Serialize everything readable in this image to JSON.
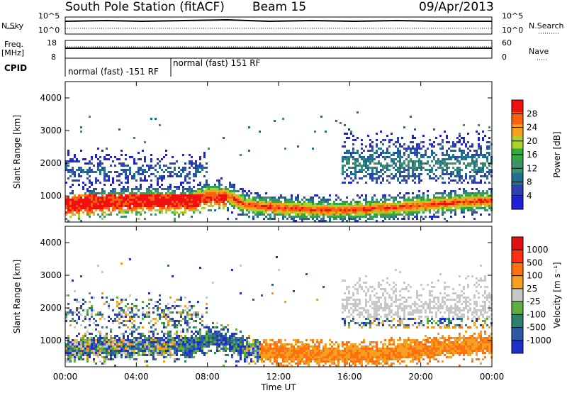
{
  "header": {
    "station": "South Pole Station (fitACF)",
    "beam": "Beam 15",
    "date": "09/Apr/2013"
  },
  "panels": {
    "nsky_label": "N.Sky",
    "nsky_ticks": [
      "10^5",
      "10^0"
    ],
    "nsearch_label": "N.Search",
    "nsearch_ticks": [
      "10^5",
      "10^0"
    ],
    "freq_label": "Freq.",
    "freq_unit": "[MHz]",
    "freq_ticks": [
      "18",
      "8"
    ],
    "nave_label": "Nave",
    "nave_ticks": [
      "60",
      "0"
    ],
    "cpid_label": "CPID",
    "cpid_segments": [
      "normal (fast) -151 RF",
      "normal (fast) 151 RF"
    ]
  },
  "colors": {
    "power": [
      "#1f1fd8",
      "#2f3fb4",
      "#1f6f8f",
      "#3f8f6f",
      "#2faa3f",
      "#a8d42a",
      "#f5a020",
      "#ff6010",
      "#f01010"
    ],
    "velocity": [
      "#1f30c8",
      "#2f57a8",
      "#2f7f6f",
      "#5fae3f",
      "#c8c8c8",
      "#f5a020",
      "#ff7010",
      "#ff3010",
      "#e01010"
    ]
  },
  "chart_data": [
    {
      "type": "heatmap",
      "quantity": "power",
      "ylabel": "Slant Range [km]",
      "yticks": [
        "1000",
        "2000",
        "3000",
        "4000"
      ],
      "ylim": [
        200,
        4500
      ],
      "xlim_hours": [
        0,
        24
      ],
      "colorbar_label": "Power [dB]",
      "colorbar_ticks": [
        "4",
        "8",
        "12",
        "16",
        "20",
        "24",
        "28"
      ],
      "colorbar_range": [
        0,
        32
      ],
      "echo_bands": [
        {
          "range_km": [
            500,
            1400
          ],
          "hours": [
            0,
            24
          ]
        },
        {
          "range_km": [
            1400,
            2400
          ],
          "hours": [
            0,
            8
          ]
        },
        {
          "range_km": [
            1500,
            3000
          ],
          "hours": [
            15.5,
            24
          ]
        }
      ]
    },
    {
      "type": "heatmap",
      "quantity": "velocity",
      "ylabel": "Slant Range [km]",
      "yticks": [
        "1000",
        "2000",
        "3000",
        "4000"
      ],
      "ylim": [
        200,
        4500
      ],
      "xlim_hours": [
        0,
        24
      ],
      "colorbar_label": "Velocity [m s⁻¹]",
      "colorbar_ticks": [
        "1000",
        "500",
        "100",
        "25",
        "-25",
        "-100",
        "-500",
        "-1000"
      ],
      "xticks": [
        "00:00",
        "04:00",
        "08:00",
        "12:00",
        "16:00",
        "20:00",
        "00:00"
      ],
      "xlabel": "Time UT"
    }
  ]
}
